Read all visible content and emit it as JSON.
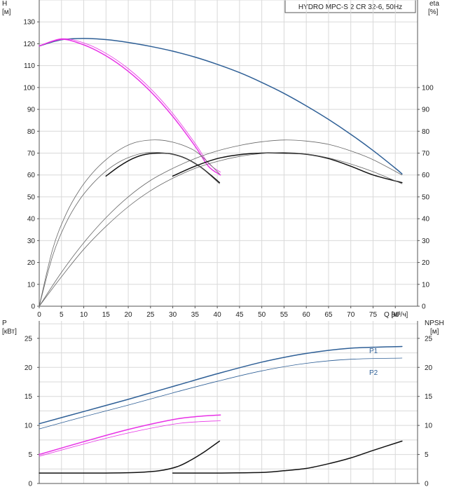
{
  "colors": {
    "blue": "#2e5f96",
    "magenta": "#e832e6",
    "black": "#111111",
    "grey": "#666666"
  },
  "chart_data": [
    {
      "type": "line",
      "title": "HYDRO MPC-S 2 CR 32-6, 50Hz",
      "y_left_label": [
        "H",
        "[м]"
      ],
      "y_right_label": [
        "eta",
        "[%]"
      ],
      "x_label": "Q [м³/ч]",
      "xlim": [
        0,
        85
      ],
      "ylim": [
        0,
        140
      ],
      "x_ticks": [
        0,
        5,
        10,
        15,
        20,
        25,
        30,
        35,
        40,
        45,
        50,
        55,
        60,
        65,
        70,
        75,
        80
      ],
      "y_left_ticks": [
        0,
        10,
        20,
        30,
        40,
        50,
        60,
        70,
        80,
        90,
        100,
        110,
        120,
        130
      ],
      "y_right_ticks": [
        0,
        10,
        20,
        30,
        40,
        50,
        60,
        70,
        80,
        90,
        100
      ],
      "grid": true,
      "series": [
        {
          "role": "H, 2 pumps",
          "color": "blue",
          "width": 1.5,
          "x": [
            0,
            5,
            10,
            15,
            20,
            25,
            30,
            35,
            40,
            45,
            50,
            55,
            60,
            65,
            70,
            75,
            80,
            81.5
          ],
          "y": [
            119,
            121.8,
            122.4,
            121.9,
            120.6,
            118.8,
            116.6,
            113.9,
            110.6,
            106.8,
            102.3,
            97.3,
            91.6,
            85.4,
            78.6,
            71.2,
            63.1,
            60.5
          ]
        },
        {
          "role": "H, 1 pump",
          "color": "magenta",
          "width": 1.5,
          "x": [
            0,
            5,
            10,
            15,
            20,
            25,
            30,
            35,
            38,
            40.7
          ],
          "y": [
            119,
            122,
            119.5,
            114.5,
            107.4,
            98.2,
            86.8,
            73.2,
            64,
            60
          ]
        },
        {
          "role": "H, 1 pump",
          "color": "magenta",
          "width": 0.8,
          "x": [
            0,
            5,
            10,
            15,
            20,
            25,
            30,
            35,
            38,
            40.7
          ],
          "y": [
            119,
            122.3,
            120.4,
            115.6,
            108.6,
            99.5,
            88.1,
            74.5,
            65.4,
            61.3
          ]
        },
        {
          "role": "eta, 1 pump",
          "color": "black",
          "width": 1.5,
          "x": [
            15,
            18,
            21,
            24,
            27.5,
            30,
            33,
            36,
            38.5,
            40.5
          ],
          "y": [
            59.5,
            64,
            67.5,
            69.5,
            70,
            69.5,
            67.5,
            64,
            60,
            56.5
          ]
        },
        {
          "role": "eta, 1 pump",
          "color": "grey",
          "width": 0.8,
          "x": [
            0,
            3,
            6,
            9,
            12,
            15,
            18,
            21,
            24,
            27,
            30,
            33,
            36,
            40.5
          ],
          "y": [
            0,
            26,
            42,
            53,
            61,
            67,
            71.5,
            74.5,
            75.8,
            76,
            75,
            73,
            69.5,
            60.5
          ]
        },
        {
          "role": "eta, 1 pump",
          "color": "grey",
          "width": 0.8,
          "x": [
            0,
            3,
            6,
            9,
            12,
            15,
            18,
            21,
            24,
            27,
            30,
            33,
            36,
            40.5
          ],
          "y": [
            0,
            23,
            38,
            48.5,
            56,
            61.8,
            66,
            68.7,
            70.2,
            70.3,
            69.4,
            67.4,
            64,
            56
          ]
        },
        {
          "role": "eta, 2 pumps",
          "color": "black",
          "width": 1.5,
          "x": [
            30,
            35,
            40,
            45,
            50,
            55,
            60,
            65,
            70,
            75,
            81.5
          ],
          "y": [
            59.5,
            64,
            67.5,
            69.3,
            70,
            70,
            69.5,
            67.5,
            64,
            60,
            56.5
          ]
        },
        {
          "role": "eta, 2 pumps",
          "color": "grey",
          "width": 0.8,
          "x": [
            0,
            5,
            10,
            15,
            20,
            25,
            30,
            35,
            40,
            45,
            50,
            55,
            60,
            65,
            70,
            75,
            81.5
          ],
          "y": [
            0,
            15.5,
            29,
            40.5,
            50,
            57.5,
            63,
            67.5,
            71,
            73.5,
            75.2,
            76,
            75.5,
            74,
            71,
            67,
            60
          ]
        },
        {
          "role": "eta, 2 pumps",
          "color": "grey",
          "width": 0.8,
          "x": [
            0,
            5,
            10,
            15,
            20,
            25,
            30,
            35,
            40,
            45,
            50,
            55,
            60,
            65,
            70,
            75,
            81.5
          ],
          "y": [
            0,
            13.5,
            26,
            36.5,
            45.5,
            52.8,
            58.5,
            63,
            66.2,
            68.5,
            69.8,
            70.3,
            69.6,
            67.8,
            65,
            61.5,
            56
          ]
        }
      ]
    },
    {
      "type": "line",
      "y_left_label": [
        "P",
        "[кВт]"
      ],
      "y_right_label": [
        "NPSH",
        "[м]"
      ],
      "xlim": [
        0,
        85
      ],
      "ylim": [
        0,
        28
      ],
      "y_left_ticks": [
        0,
        5,
        10,
        15,
        20,
        25
      ],
      "y_right_ticks": [
        0,
        5,
        10,
        15,
        20,
        25
      ],
      "grid": true,
      "series": [
        {
          "name": "P1",
          "color": "blue",
          "width": 1.5,
          "x": [
            0,
            10,
            20,
            30,
            40,
            50,
            60,
            70,
            81.5
          ],
          "y": [
            10.3,
            12.4,
            14.5,
            16.7,
            18.9,
            20.9,
            22.4,
            23.3,
            23.6
          ]
        },
        {
          "name": "P2",
          "color": "blue",
          "width": 0.8,
          "x": [
            0,
            10,
            20,
            30,
            40,
            50,
            60,
            70,
            81.5
          ],
          "y": [
            9.4,
            11.5,
            13.5,
            15.6,
            17.6,
            19.4,
            20.7,
            21.4,
            21.6
          ]
        },
        {
          "role": "P1, 1 pump",
          "color": "magenta",
          "width": 1.5,
          "x": [
            0,
            10,
            20,
            30,
            35,
            40.7
          ],
          "y": [
            5,
            7.2,
            9.3,
            11,
            11.5,
            11.8
          ]
        },
        {
          "role": "P2, 1 pump",
          "color": "magenta",
          "width": 0.8,
          "x": [
            0,
            10,
            20,
            30,
            35,
            40.7
          ],
          "y": [
            4.7,
            6.8,
            8.7,
            10.2,
            10.6,
            10.8
          ]
        },
        {
          "role": "NPSH, 1 pump",
          "color": "black",
          "width": 1.5,
          "x": [
            0,
            15,
            22,
            27,
            31,
            34,
            37,
            40.5
          ],
          "y": [
            1.8,
            1.8,
            1.9,
            2.2,
            2.9,
            4,
            5.4,
            7.3
          ]
        },
        {
          "role": "NPSH, 2 pumps",
          "color": "black",
          "width": 1.5,
          "x": [
            30,
            40,
            50,
            55,
            60,
            65,
            70,
            75,
            81.5
          ],
          "y": [
            1.8,
            1.8,
            1.9,
            2.2,
            2.6,
            3.4,
            4.4,
            5.7,
            7.3
          ]
        }
      ],
      "annotations": [
        "P1",
        "P2"
      ]
    }
  ]
}
